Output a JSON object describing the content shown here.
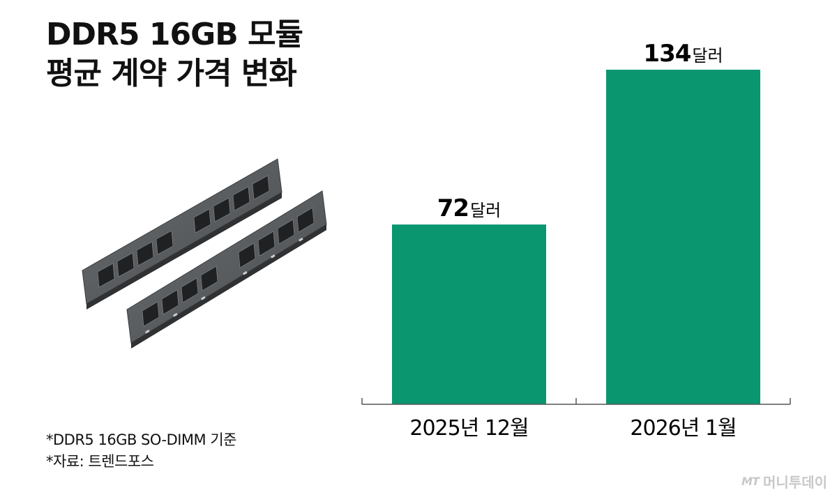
{
  "title": {
    "line1": "DDR5 16GB 모듈",
    "line2": "평균 계약 가격 변화"
  },
  "chart_data": {
    "type": "bar",
    "categories": [
      "2025년 12월",
      "2026년 1월"
    ],
    "values": [
      72,
      134
    ],
    "value_labels": [
      {
        "number": "72",
        "unit": "달러"
      },
      {
        "number": "134",
        "unit": "달러"
      }
    ],
    "bar_color": "#0a9770",
    "axis_color": "#555555",
    "ylim": [
      0,
      134
    ],
    "grid": false,
    "legend": "none"
  },
  "notes": [
    "*DDR5 16GB SO-DIMM 기준",
    "*자료: 트렌드포스"
  ],
  "brand": {
    "logo": "MT",
    "name": "머니투데이"
  },
  "illustration": "ram-module-icon"
}
